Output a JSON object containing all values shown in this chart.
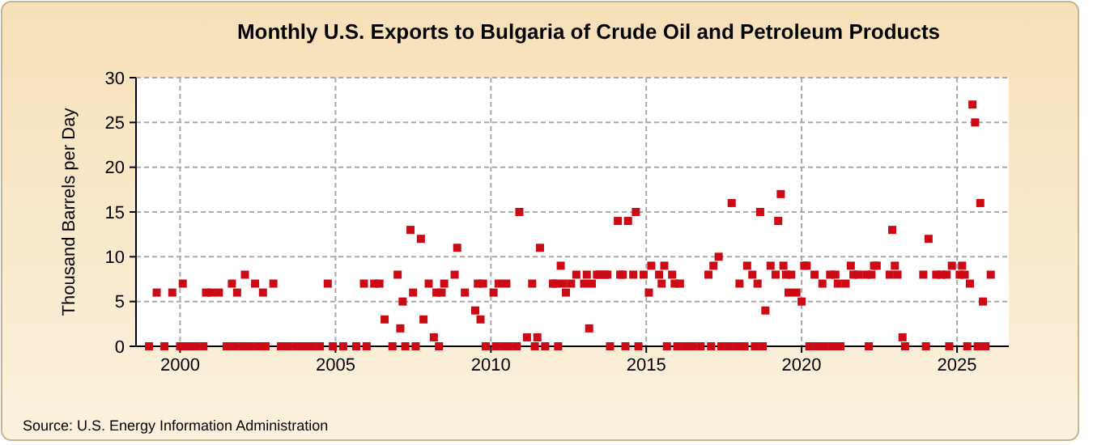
{
  "chart_data": {
    "type": "scatter",
    "title": "Monthly U.S. Exports to Bulgaria of Crude Oil and Petroleum Products",
    "ylabel": "Thousand Barrels per Day",
    "annotations": [
      "Source: U.S. Energy Information Administration"
    ],
    "xlim": [
      "1998-08",
      "2026-09"
    ],
    "xticks": [
      "2000",
      "2005",
      "2010",
      "2015",
      "2020",
      "2025"
    ],
    "ylim": [
      0,
      30
    ],
    "yticks": [
      0,
      5,
      10,
      15,
      20,
      25,
      30
    ],
    "grid": true,
    "marker": "square",
    "series": [
      {
        "color": "#cc0a14",
        "x": [
          "1999-01",
          "1999-04",
          "1999-07",
          "1999-10",
          "2000-01",
          "2000-02",
          "2000-04",
          "2000-07",
          "2000-10",
          "2000-11",
          "2001-01",
          "2001-04",
          "2001-07",
          "2001-09",
          "2001-10",
          "2001-11",
          "2002-01",
          "2002-02",
          "2002-04",
          "2002-06",
          "2002-07",
          "2002-09",
          "2002-10",
          "2003-01",
          "2003-04",
          "2003-07",
          "2003-10",
          "2004-01",
          "2004-04",
          "2004-07",
          "2004-10",
          "2004-12",
          "2005-04",
          "2005-09",
          "2005-12",
          "2006-01",
          "2006-04",
          "2006-06",
          "2006-08",
          "2006-11",
          "2007-01",
          "2007-02",
          "2007-03",
          "2007-04",
          "2007-06",
          "2007-07",
          "2007-08",
          "2007-10",
          "2007-11",
          "2008-01",
          "2008-03",
          "2008-04",
          "2008-05",
          "2008-06",
          "2008-07",
          "2008-11",
          "2008-12",
          "2009-03",
          "2009-07",
          "2009-08",
          "2009-09",
          "2009-10",
          "2009-11",
          "2010-02",
          "2010-03",
          "2010-04",
          "2010-06",
          "2010-07",
          "2010-08",
          "2010-11",
          "2010-12",
          "2011-03",
          "2011-05",
          "2011-06",
          "2011-07",
          "2011-08",
          "2011-10",
          "2012-01",
          "2012-02",
          "2012-03",
          "2012-04",
          "2012-05",
          "2012-06",
          "2012-08",
          "2012-10",
          "2013-01",
          "2013-02",
          "2013-03",
          "2013-04",
          "2013-06",
          "2013-07",
          "2013-09",
          "2013-10",
          "2013-11",
          "2014-02",
          "2014-03",
          "2014-04",
          "2014-05",
          "2014-06",
          "2014-08",
          "2014-09",
          "2014-10",
          "2014-12",
          "2015-02",
          "2015-03",
          "2015-06",
          "2015-07",
          "2015-08",
          "2015-09",
          "2015-11",
          "2015-12",
          "2016-01",
          "2016-02",
          "2016-04",
          "2016-07",
          "2016-10",
          "2017-01",
          "2017-02",
          "2017-03",
          "2017-05",
          "2017-06",
          "2017-09",
          "2017-10",
          "2017-12",
          "2018-01",
          "2018-03",
          "2018-04",
          "2018-06",
          "2018-07",
          "2018-08",
          "2018-09",
          "2018-10",
          "2018-11",
          "2019-01",
          "2019-03",
          "2019-04",
          "2019-05",
          "2019-06",
          "2019-07",
          "2019-08",
          "2019-09",
          "2019-11",
          "2020-01",
          "2020-02",
          "2020-03",
          "2020-04",
          "2020-06",
          "2020-07",
          "2020-09",
          "2020-10",
          "2020-12",
          "2021-01",
          "2021-02",
          "2021-03",
          "2021-04",
          "2021-06",
          "2021-08",
          "2021-09",
          "2021-11",
          "2022-02",
          "2022-03",
          "2022-04",
          "2022-05",
          "2022-06",
          "2022-11",
          "2022-12",
          "2023-01",
          "2023-02",
          "2023-04",
          "2023-05",
          "2023-12",
          "2024-01",
          "2024-02",
          "2024-05",
          "2024-07",
          "2024-09",
          "2024-10",
          "2024-11",
          "2025-02",
          "2025-03",
          "2025-04",
          "2025-05",
          "2025-06",
          "2025-07",
          "2025-08",
          "2025-09",
          "2025-10",
          "2025-11",
          "2025-12",
          "2026-02"
        ],
        "values": [
          0,
          6,
          0,
          6,
          0,
          7,
          0,
          0,
          0,
          6,
          6,
          6,
          0,
          7,
          0,
          6,
          0,
          8,
          0,
          7,
          0,
          6,
          0,
          7,
          0,
          0,
          0,
          0,
          0,
          0,
          7,
          0,
          0,
          0,
          7,
          0,
          7,
          7,
          3,
          0,
          8,
          2,
          5,
          0,
          13,
          6,
          0,
          12,
          3,
          7,
          1,
          6,
          0,
          6,
          7,
          8,
          11,
          6,
          4,
          7,
          3,
          7,
          0,
          6,
          0,
          7,
          0,
          7,
          0,
          0,
          15,
          1,
          7,
          0,
          1,
          11,
          0,
          7,
          7,
          0,
          9,
          7,
          6,
          7,
          8,
          7,
          8,
          2,
          7,
          8,
          8,
          8,
          8,
          0,
          14,
          8,
          8,
          0,
          14,
          8,
          15,
          0,
          8,
          6,
          9,
          8,
          7,
          9,
          0,
          8,
          7,
          0,
          7,
          0,
          0,
          0,
          8,
          0,
          9,
          10,
          0,
          0,
          16,
          0,
          7,
          0,
          9,
          8,
          0,
          7,
          15,
          0,
          4,
          9,
          8,
          14,
          17,
          9,
          8,
          6,
          8,
          6,
          5,
          9,
          9,
          0,
          8,
          0,
          7,
          0,
          8,
          0,
          8,
          7,
          0,
          7,
          9,
          8,
          8,
          8,
          0,
          8,
          9,
          9,
          8,
          13,
          9,
          8,
          1,
          0,
          8,
          0,
          12,
          8,
          8,
          8,
          0,
          9,
          8,
          9,
          8,
          0,
          7,
          27,
          25,
          0,
          16,
          5,
          0,
          8
        ]
      }
    ]
  }
}
